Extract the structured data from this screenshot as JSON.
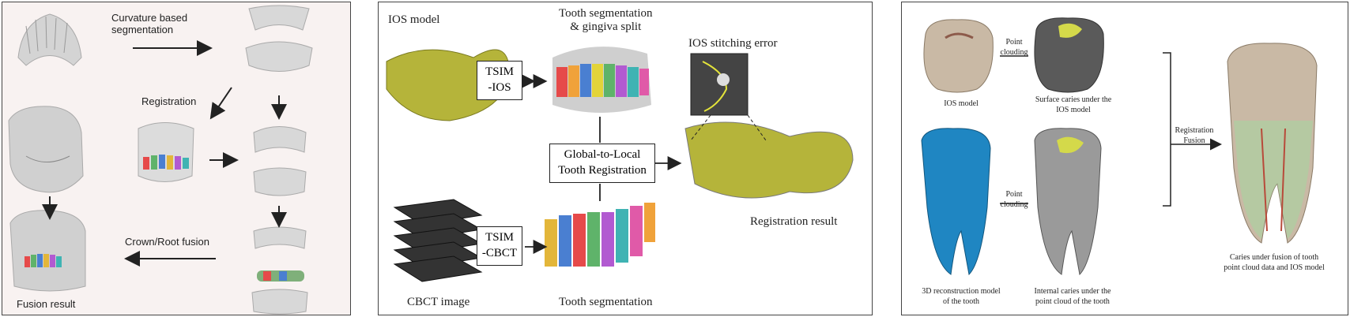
{
  "panel1": {
    "curvature_label": "Curvature based\nsegmentation",
    "registration_label": "Registration",
    "crown_root_label": "Crown/Root fusion",
    "fusion_result_label": "Fusion result"
  },
  "panel2": {
    "ios_model_label": "IOS model",
    "tooth_seg_top_label": "Tooth segmentation\n& gingiva split",
    "stitching_error_label": "IOS stitching error",
    "tsim_ios_label": "TSIM\n-IOS",
    "global_local_label": "Global-to-Local\nTooth Registration",
    "tsim_cbct_label": "TSIM\n-CBCT",
    "registration_result_label": "Registration result",
    "cbct_image_label": "CBCT image",
    "tooth_seg_bottom_label": "Tooth segmentation"
  },
  "panel3": {
    "ios_model_label": "IOS model",
    "point_clouding_top": "Point\nclouding",
    "surface_caries_label": "Surface caries under the\nIOS model",
    "registration_fusion_label": "Registration\nFusion",
    "recon_model_label": "3D reconstruction model\nof the tooth",
    "point_clouding_bottom": "Point\nclouding",
    "internal_caries_label": "Internal caries under the\npoint cloud of the tooth",
    "fusion_caption": "Caries under fusion of tooth\npoint cloud data and IOS model"
  },
  "colors": {
    "panel1_bg": "#f8f2f1",
    "ios_model": "#b5b43a",
    "cbct_tooth": "#1f86c2",
    "caries": "#d4d94a"
  }
}
